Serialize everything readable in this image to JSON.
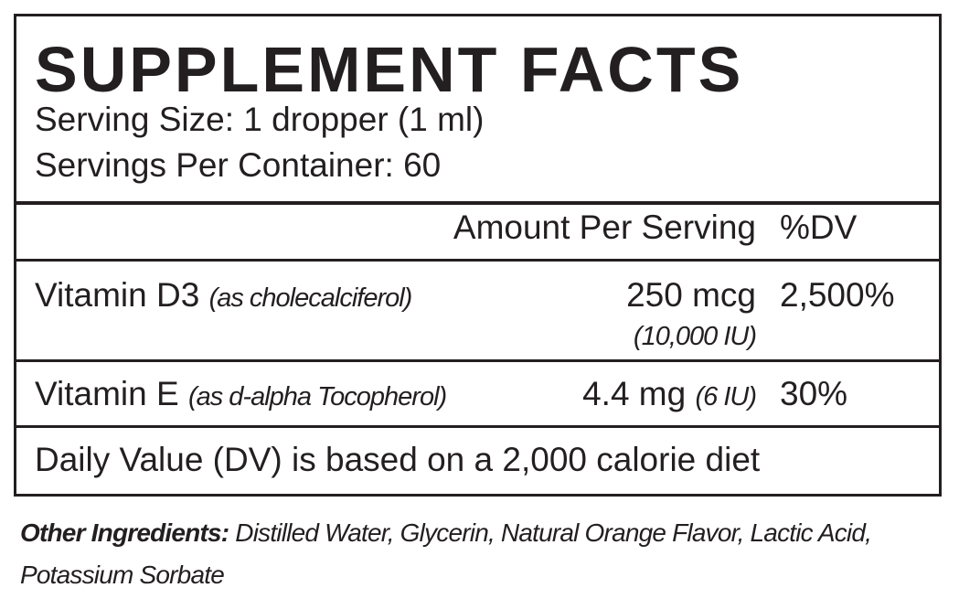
{
  "title": "SUPPLEMENT FACTS",
  "serving_size": "Serving Size: 1 dropper (1 ml)",
  "servings_per_container": "Servings Per Container: 60",
  "table": {
    "amount_header": "Amount Per Serving",
    "dv_header": "%DV",
    "rows": [
      {
        "name": "Vitamin D3",
        "source": "(as cholecalciferol)",
        "amount": "250 mcg",
        "amount_iu": "(10,000 IU)",
        "dv": "2,500%"
      },
      {
        "name": "Vitamin E",
        "source": "(as d-alpha Tocopherol)",
        "amount": "4.4 mg",
        "amount_iu": "(6 IU)",
        "dv": "30%"
      }
    ],
    "footnote": "Daily Value (DV) is based on a 2,000 calorie diet"
  },
  "other_ingredients": {
    "label": "Other Ingredients:",
    "text": "Distilled Water, Glycerin, Natural Orange Flavor, Lactic Acid, Potassium Sorbate"
  }
}
